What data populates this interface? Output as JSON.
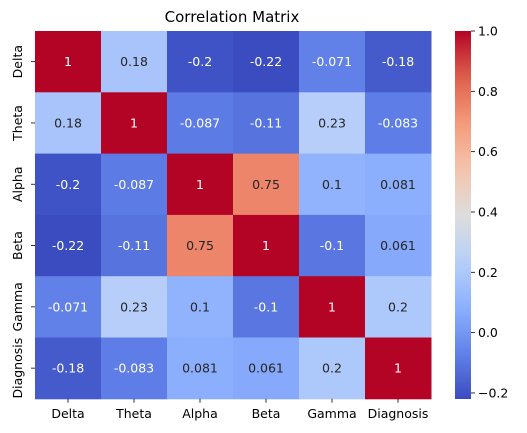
{
  "chart_data": {
    "type": "heatmap",
    "title": "Correlation Matrix",
    "xlabel": "",
    "ylabel": "",
    "x_categories": [
      "Delta",
      "Theta",
      "Alpha",
      "Beta",
      "Gamma",
      "Diagnosis"
    ],
    "y_categories": [
      "Delta",
      "Theta",
      "Alpha",
      "Beta",
      "Gamma",
      "Diagnosis"
    ],
    "values": [
      [
        1,
        0.18,
        -0.2,
        -0.22,
        -0.071,
        -0.18
      ],
      [
        0.18,
        1,
        -0.087,
        -0.11,
        0.23,
        -0.083
      ],
      [
        -0.2,
        -0.087,
        1,
        0.75,
        0.1,
        0.081
      ],
      [
        -0.22,
        -0.11,
        0.75,
        1,
        -0.1,
        0.061
      ],
      [
        -0.071,
        0.23,
        0.1,
        -0.1,
        1,
        0.2
      ],
      [
        -0.18,
        -0.083,
        0.081,
        0.061,
        0.2,
        1
      ]
    ],
    "value_labels": [
      [
        "1",
        "0.18",
        "-0.2",
        "-0.22",
        "-0.071",
        "-0.18"
      ],
      [
        "0.18",
        "1",
        "-0.087",
        "-0.11",
        "0.23",
        "-0.083"
      ],
      [
        "-0.2",
        "-0.087",
        "1",
        "0.75",
        "0.1",
        "0.081"
      ],
      [
        "-0.22",
        "-0.11",
        "0.75",
        "1",
        "-0.1",
        "0.061"
      ],
      [
        "-0.071",
        "0.23",
        "0.1",
        "-0.1",
        "1",
        "0.2"
      ],
      [
        "-0.18",
        "-0.083",
        "0.081",
        "0.061",
        "0.2",
        "1"
      ]
    ],
    "colormap": "coolwarm",
    "colorbar": {
      "vmin": -0.22,
      "vmax": 1,
      "ticks": [
        -0.2,
        0,
        0.2,
        0.4,
        0.6,
        0.8,
        1
      ],
      "tick_labels": [
        "−0.2",
        "0.0",
        "0.2",
        "0.4",
        "0.6",
        "0.8",
        "1.0"
      ]
    }
  }
}
